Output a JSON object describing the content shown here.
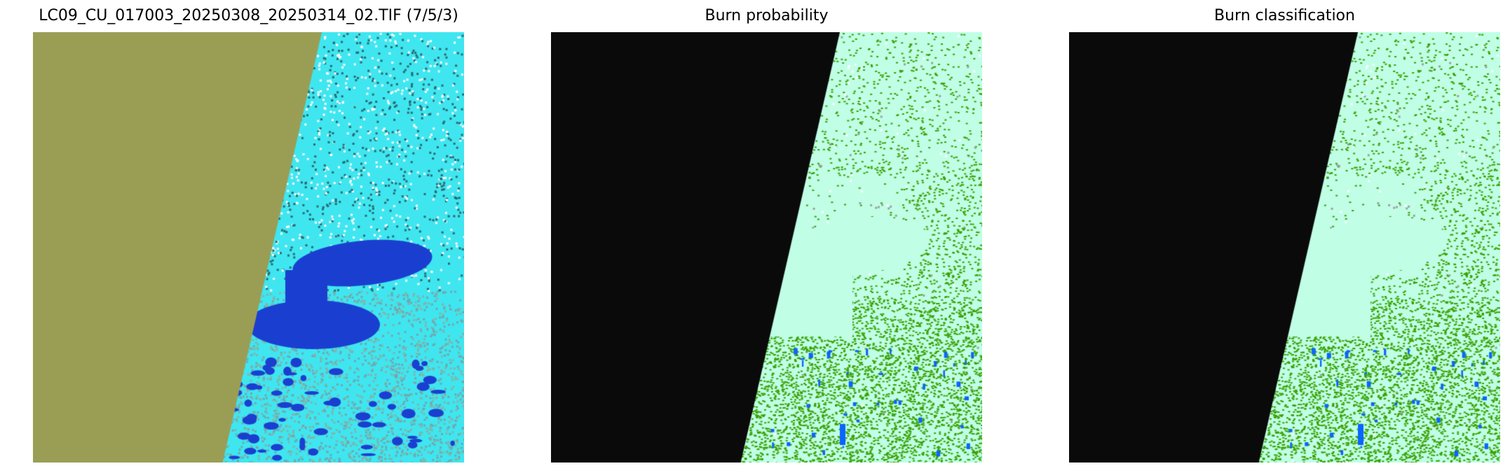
{
  "figure": {
    "panels": [
      {
        "title": "LC09_CU_017003_20250308_20250314_02.TIF (7/5/3)",
        "kind": "rgb-composite",
        "nodata_color": "#9a9e55",
        "land_color": "#3fe6f0",
        "water_color": "#1a3fd0"
      },
      {
        "title": "Burn probability",
        "kind": "probability-map",
        "nodata_color": "#0a0a0a",
        "background_color": "#c0ffe6",
        "burn_color": "#38a000",
        "water_color": "#0a64ff"
      },
      {
        "title": "Burn classification",
        "kind": "classification-map",
        "nodata_color": "#0a0a0a",
        "background_color": "#c0ffe6",
        "burn_color": "#38a000",
        "water_color": "#0a64ff"
      }
    ]
  }
}
